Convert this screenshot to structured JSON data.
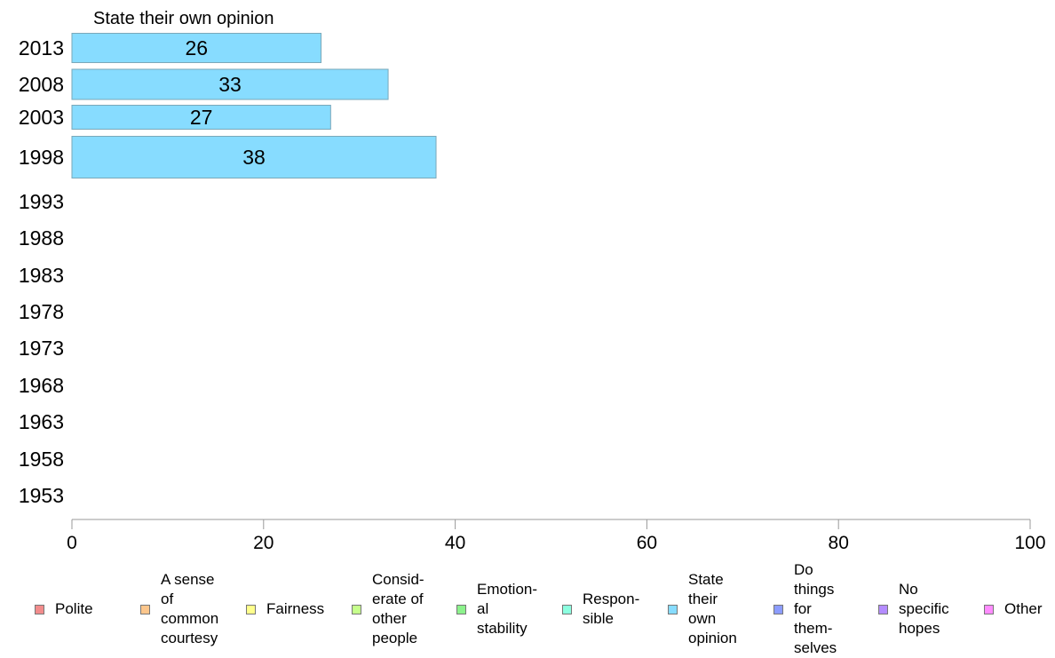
{
  "chart_data": {
    "type": "bar",
    "orientation": "horizontal",
    "title": "State their own opinion",
    "xlabel": "",
    "ylabel": "",
    "xlim": [
      0,
      100
    ],
    "xticks": [
      0,
      20,
      40,
      60,
      80,
      100
    ],
    "categories": [
      "2013",
      "2008",
      "2003",
      "1998",
      "1993",
      "1988",
      "1983",
      "1978",
      "1973",
      "1968",
      "1963",
      "1958",
      "1953"
    ],
    "series": [
      {
        "name": "State their own opinion",
        "color": "#87dcff",
        "values": [
          26,
          33,
          27,
          38,
          null,
          null,
          null,
          null,
          null,
          null,
          null,
          null,
          null
        ],
        "labels": [
          "26",
          "33",
          "27",
          "38",
          "",
          "",
          "",
          "",
          "",
          "",
          "",
          "",
          ""
        ]
      }
    ],
    "grid": false,
    "legend_position": "bottom",
    "legend": [
      {
        "label": "Polite",
        "color": "#f28c8c"
      },
      {
        "label": "A sense\nof\ncommon\ncourtesy",
        "color": "#fcc68c"
      },
      {
        "label": "Fairness",
        "color": "#ffff8c"
      },
      {
        "label": "Consid-\nerate of\nother\npeople",
        "color": "#c6ff8c"
      },
      {
        "label": "Emotion-\nal\nstability",
        "color": "#8cf28c"
      },
      {
        "label": "Respon-\nsible",
        "color": "#8cffe0"
      },
      {
        "label": "State\ntheir\nown\nopinion",
        "color": "#87dcff"
      },
      {
        "label": "Do\nthings\nfor\nthem-\nselves",
        "color": "#8c9cff"
      },
      {
        "label": "No\nspecific\nhopes",
        "color": "#b48cff"
      },
      {
        "label": "Other",
        "color": "#ff8cff"
      }
    ]
  }
}
